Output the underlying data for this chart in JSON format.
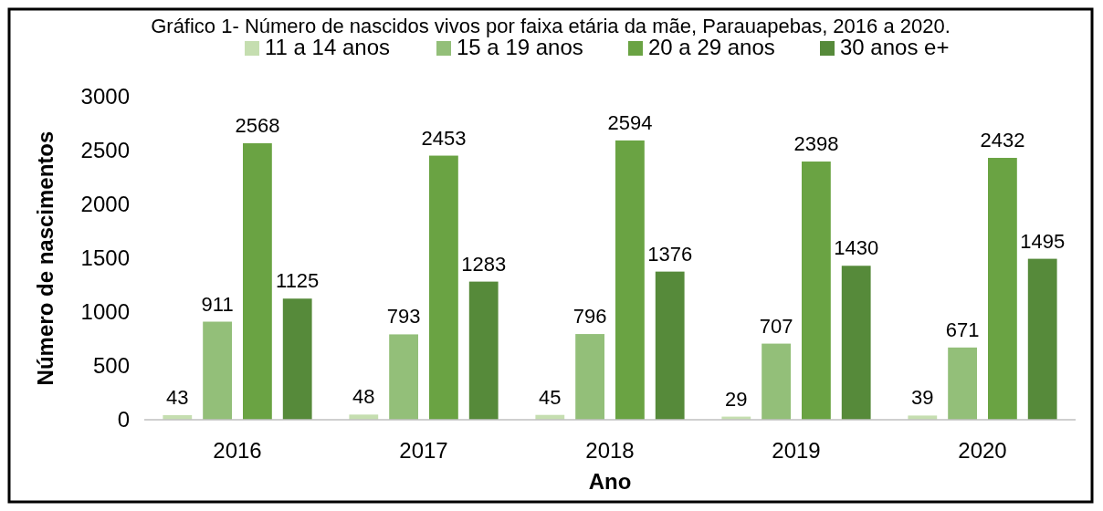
{
  "chart_data": {
    "type": "bar",
    "title": "Gráfico 1- Número de nascidos vivos por faixa etária da mãe, Parauapebas, 2016 a 2020.",
    "xlabel": "Ano",
    "ylabel": "Número de nascimentos",
    "categories": [
      "2016",
      "2017",
      "2018",
      "2019",
      "2020"
    ],
    "series": [
      {
        "name": "11 a 14 anos",
        "color": "#c5deb0",
        "values": [
          43,
          48,
          45,
          29,
          39
        ]
      },
      {
        "name": "15 a 19 anos",
        "color": "#93bf79",
        "values": [
          911,
          793,
          796,
          707,
          671
        ]
      },
      {
        "name": "20 a 29 anos",
        "color": "#6aa343",
        "values": [
          2568,
          2453,
          2594,
          2398,
          2432
        ]
      },
      {
        "name": "30 anos e+",
        "color": "#568a3a",
        "values": [
          1125,
          1283,
          1376,
          1430,
          1495
        ]
      }
    ],
    "ylim": [
      0,
      3000
    ],
    "yticks": [
      0,
      500,
      1000,
      1500,
      2000,
      2500,
      3000
    ],
    "data_labels": true,
    "legend": "top",
    "grid": false
  }
}
